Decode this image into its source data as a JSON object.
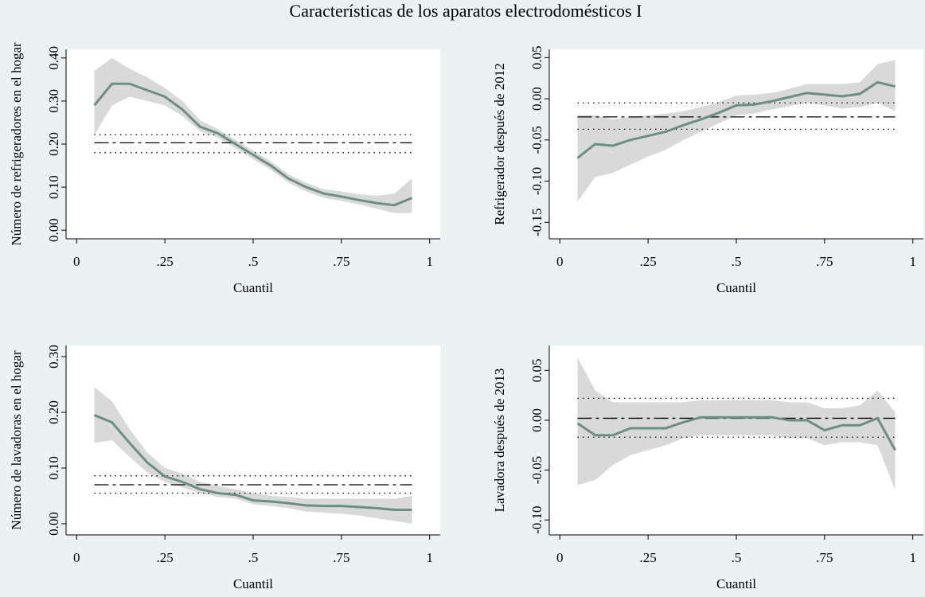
{
  "title": "Características de los aparatos electrodomésticos I",
  "chart_data": [
    {
      "type": "line",
      "ylabel": "Número de refrigeradores en el hogar",
      "xlabel": "Cuantil",
      "x": [
        0.05,
        0.1,
        0.15,
        0.2,
        0.25,
        0.3,
        0.35,
        0.4,
        0.45,
        0.5,
        0.55,
        0.6,
        0.65,
        0.7,
        0.75,
        0.8,
        0.85,
        0.9,
        0.95
      ],
      "series": [
        {
          "color": "#6b8f80",
          "values": [
            0.29,
            0.34,
            0.34,
            0.325,
            0.31,
            0.28,
            0.24,
            0.225,
            0.2,
            0.175,
            0.15,
            0.12,
            0.1,
            0.085,
            0.078,
            0.07,
            0.063,
            0.058,
            0.075
          ]
        }
      ],
      "band": {
        "color": "#d9d9d9",
        "lower": [
          0.22,
          0.29,
          0.31,
          0.3,
          0.29,
          0.265,
          0.23,
          0.215,
          0.19,
          0.165,
          0.14,
          0.11,
          0.09,
          0.075,
          0.068,
          0.06,
          0.05,
          0.04,
          0.04
        ],
        "upper": [
          0.37,
          0.4,
          0.375,
          0.355,
          0.33,
          0.3,
          0.255,
          0.235,
          0.21,
          0.185,
          0.16,
          0.13,
          0.11,
          0.095,
          0.09,
          0.083,
          0.08,
          0.085,
          0.12
        ]
      },
      "hlines": [
        {
          "value": 0.203,
          "style": "dashdot",
          "color": "#000000"
        },
        {
          "value": 0.18,
          "style": "dot",
          "color": "#000000"
        },
        {
          "value": 0.222,
          "style": "dot",
          "color": "#000000"
        }
      ],
      "xlim": [
        -0.03,
        1.03
      ],
      "xticks": [
        0,
        {
          "value": 0.25,
          "label": ".25"
        },
        {
          "value": 0.5,
          "label": ".5"
        },
        {
          "value": 0.75,
          "label": ".75"
        },
        1
      ],
      "ylim": [
        -0.02,
        0.42
      ],
      "yticks": [
        {
          "value": 0,
          "label": "0.00"
        },
        {
          "value": 0.1,
          "label": "0.10"
        },
        {
          "value": 0.2,
          "label": "0.20"
        },
        {
          "value": 0.3,
          "label": "0.30"
        },
        {
          "value": 0.4,
          "label": "0.40"
        }
      ]
    },
    {
      "type": "line",
      "ylabel": "Refrigerador después de 2012",
      "xlabel": "Cuantil",
      "x": [
        0.05,
        0.1,
        0.15,
        0.2,
        0.25,
        0.3,
        0.35,
        0.4,
        0.45,
        0.5,
        0.55,
        0.6,
        0.65,
        0.7,
        0.75,
        0.8,
        0.85,
        0.9,
        0.95
      ],
      "series": [
        {
          "color": "#6b8f80",
          "values": [
            -0.072,
            -0.055,
            -0.057,
            -0.05,
            -0.045,
            -0.04,
            -0.032,
            -0.025,
            -0.017,
            -0.008,
            -0.007,
            -0.003,
            0.002,
            0.007,
            0.005,
            0.003,
            0.006,
            0.02,
            0.015
          ]
        }
      ],
      "band": {
        "color": "#d9d9d9",
        "lower": [
          -0.125,
          -0.095,
          -0.09,
          -0.08,
          -0.07,
          -0.062,
          -0.05,
          -0.04,
          -0.03,
          -0.02,
          -0.018,
          -0.013,
          -0.009,
          -0.005,
          -0.008,
          -0.012,
          -0.01,
          -0.005,
          -0.015
        ],
        "upper": [
          -0.02,
          -0.02,
          -0.025,
          -0.022,
          -0.02,
          -0.018,
          -0.015,
          -0.01,
          -0.004,
          0.004,
          0.005,
          0.007,
          0.012,
          0.018,
          0.018,
          0.018,
          0.02,
          0.042,
          0.047
        ]
      },
      "hlines": [
        {
          "value": -0.022,
          "style": "dashdot",
          "color": "#000000"
        },
        {
          "value": -0.037,
          "style": "dot",
          "color": "#000000"
        },
        {
          "value": -0.005,
          "style": "dot",
          "color": "#000000"
        }
      ],
      "xlim": [
        -0.03,
        1.03
      ],
      "xticks": [
        0,
        {
          "value": 0.25,
          "label": ".25"
        },
        {
          "value": 0.5,
          "label": ".5"
        },
        {
          "value": 0.75,
          "label": ".75"
        },
        1
      ],
      "ylim": [
        -0.17,
        0.06
      ],
      "yticks": [
        {
          "value": -0.15,
          "label": "-0.15"
        },
        {
          "value": -0.1,
          "label": "-0.10"
        },
        {
          "value": -0.05,
          "label": "-0.05"
        },
        {
          "value": 0,
          "label": "0.00"
        },
        {
          "value": 0.05,
          "label": "0.05"
        }
      ]
    },
    {
      "type": "line",
      "ylabel": "Número de lavadoras en el hogar",
      "xlabel": "Cuantil",
      "x": [
        0.05,
        0.1,
        0.15,
        0.2,
        0.25,
        0.3,
        0.35,
        0.4,
        0.45,
        0.5,
        0.55,
        0.6,
        0.65,
        0.7,
        0.75,
        0.8,
        0.85,
        0.9,
        0.95
      ],
      "series": [
        {
          "color": "#6b8f80",
          "values": [
            0.195,
            0.182,
            0.145,
            0.11,
            0.085,
            0.075,
            0.062,
            0.055,
            0.052,
            0.042,
            0.04,
            0.037,
            0.033,
            0.032,
            0.032,
            0.03,
            0.028,
            0.025,
            0.025
          ]
        }
      ],
      "band": {
        "color": "#d9d9d9",
        "lower": [
          0.145,
          0.15,
          0.12,
          0.092,
          0.075,
          0.065,
          0.055,
          0.048,
          0.045,
          0.035,
          0.032,
          0.028,
          0.022,
          0.02,
          0.018,
          0.015,
          0.01,
          0.005,
          0
        ],
        "upper": [
          0.245,
          0.22,
          0.17,
          0.128,
          0.1,
          0.09,
          0.075,
          0.068,
          0.062,
          0.055,
          0.05,
          0.048,
          0.045,
          0.045,
          0.045,
          0.045,
          0.045,
          0.045,
          0.05
        ]
      },
      "hlines": [
        {
          "value": 0.07,
          "style": "dashdot",
          "color": "#000000"
        },
        {
          "value": 0.055,
          "style": "dot",
          "color": "#000000"
        },
        {
          "value": 0.086,
          "style": "dot",
          "color": "#000000"
        }
      ],
      "xlim": [
        -0.03,
        1.03
      ],
      "xticks": [
        0,
        {
          "value": 0.25,
          "label": ".25"
        },
        {
          "value": 0.5,
          "label": ".5"
        },
        {
          "value": 0.75,
          "label": ".75"
        },
        1
      ],
      "ylim": [
        -0.02,
        0.32
      ],
      "yticks": [
        {
          "value": 0,
          "label": "0.00"
        },
        {
          "value": 0.1,
          "label": "0.10"
        },
        {
          "value": 0.2,
          "label": "0.20"
        },
        {
          "value": 0.3,
          "label": "0.30"
        }
      ]
    },
    {
      "type": "line",
      "ylabel": "Lavadora después de 2013",
      "xlabel": "Cuantil",
      "x": [
        0.05,
        0.1,
        0.15,
        0.2,
        0.25,
        0.3,
        0.35,
        0.4,
        0.45,
        0.5,
        0.55,
        0.6,
        0.65,
        0.7,
        0.75,
        0.8,
        0.85,
        0.9,
        0.95
      ],
      "series": [
        {
          "color": "#6b8f80",
          "values": [
            -0.003,
            -0.015,
            -0.015,
            -0.008,
            -0.008,
            -0.008,
            -0.002,
            0.003,
            0.003,
            0.003,
            0.003,
            0.003,
            0,
            0,
            -0.01,
            -0.005,
            -0.005,
            0.002,
            -0.03
          ]
        }
      ],
      "band": {
        "color": "#d9d9d9",
        "lower": [
          -0.065,
          -0.06,
          -0.045,
          -0.035,
          -0.03,
          -0.025,
          -0.018,
          -0.015,
          -0.015,
          -0.015,
          -0.015,
          -0.015,
          -0.018,
          -0.018,
          -0.025,
          -0.022,
          -0.022,
          -0.025,
          -0.07
        ],
        "upper": [
          0.063,
          0.03,
          0.018,
          0.018,
          0.018,
          0.018,
          0.018,
          0.02,
          0.02,
          0.02,
          0.02,
          0.02,
          0.018,
          0.018,
          0.012,
          0.012,
          0.015,
          0.03,
          0.008
        ]
      },
      "hlines": [
        {
          "value": 0.002,
          "style": "dashdot",
          "color": "#000000"
        },
        {
          "value": -0.017,
          "style": "dot",
          "color": "#000000"
        },
        {
          "value": 0.022,
          "style": "dot",
          "color": "#000000"
        }
      ],
      "xlim": [
        -0.03,
        1.03
      ],
      "xticks": [
        0,
        {
          "value": 0.25,
          "label": ".25"
        },
        {
          "value": 0.5,
          "label": ".5"
        },
        {
          "value": 0.75,
          "label": ".75"
        },
        1
      ],
      "ylim": [
        -0.115,
        0.075
      ],
      "yticks": [
        {
          "value": -0.1,
          "label": "-0.10"
        },
        {
          "value": -0.05,
          "label": "-0.05"
        },
        {
          "value": 0,
          "label": "0.00"
        },
        {
          "value": 0.05,
          "label": "0.05"
        }
      ]
    }
  ]
}
